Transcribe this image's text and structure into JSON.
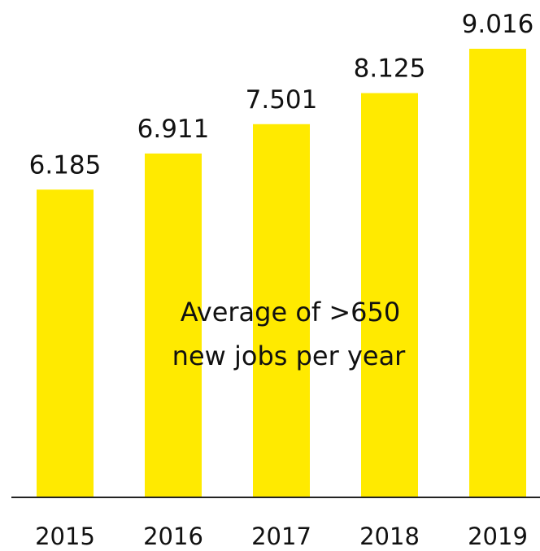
{
  "chart_data": {
    "type": "bar",
    "categories": [
      "2015",
      "2016",
      "2017",
      "2018",
      "2019"
    ],
    "values": [
      6185,
      6911,
      7501,
      8125,
      9016
    ],
    "value_labels": [
      "6.185",
      "6.911",
      "7.501",
      "8.125",
      "9.016"
    ],
    "title": "",
    "xlabel": "",
    "ylabel": "",
    "ylim": [
      0,
      9016
    ],
    "grid": false,
    "annotation": [
      "Average of >650",
      "new jobs per year"
    ],
    "colors": {
      "bar": "#FFEA00",
      "axis": "#222222",
      "text": "#111111"
    }
  }
}
